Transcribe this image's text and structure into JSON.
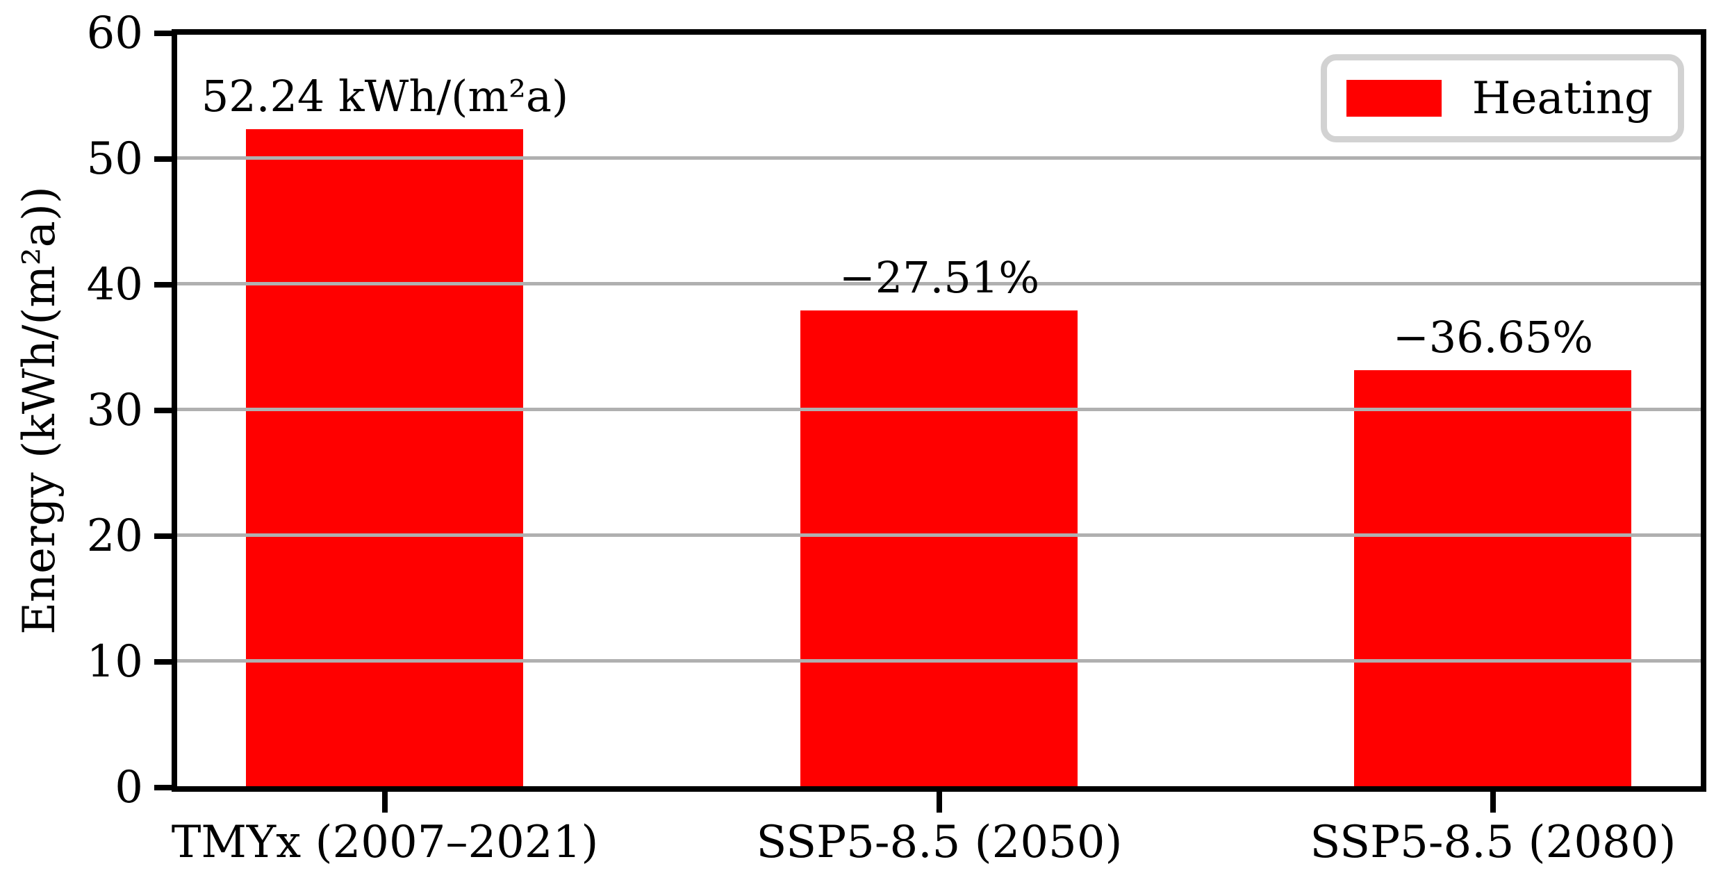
{
  "chart_data": {
    "type": "bar",
    "title": "",
    "categories": [
      "TMYx (2007–2021)",
      "SSP5-8.5 (2050)",
      "SSP5-8.5 (2080)"
    ],
    "series": [
      {
        "name": "Heating",
        "color": "#ff0000",
        "values": [
          52.24,
          37.87,
          33.09
        ],
        "bar_labels": [
          "52.24 kWh/(m²a)",
          "−27.51%",
          "−36.65%"
        ]
      }
    ],
    "xlabel": "",
    "ylabel": "Energy (kWh/(m²a))",
    "ylim": [
      0,
      60
    ],
    "yticks": [
      0,
      10,
      20,
      30,
      40,
      50,
      60
    ],
    "xlim": [
      -0.375,
      2.375
    ],
    "bar_width_units": 0.5,
    "grid": "horizontal",
    "grid_over_bars": true,
    "gridline_color": "#b0b0b0",
    "spine_color": "#000000",
    "background_color": "#ffffff",
    "legend": {
      "position": "upper right",
      "border_color": "#d2d2d2",
      "entries": [
        {
          "label": "Heating",
          "color": "#ff0000"
        }
      ]
    }
  }
}
